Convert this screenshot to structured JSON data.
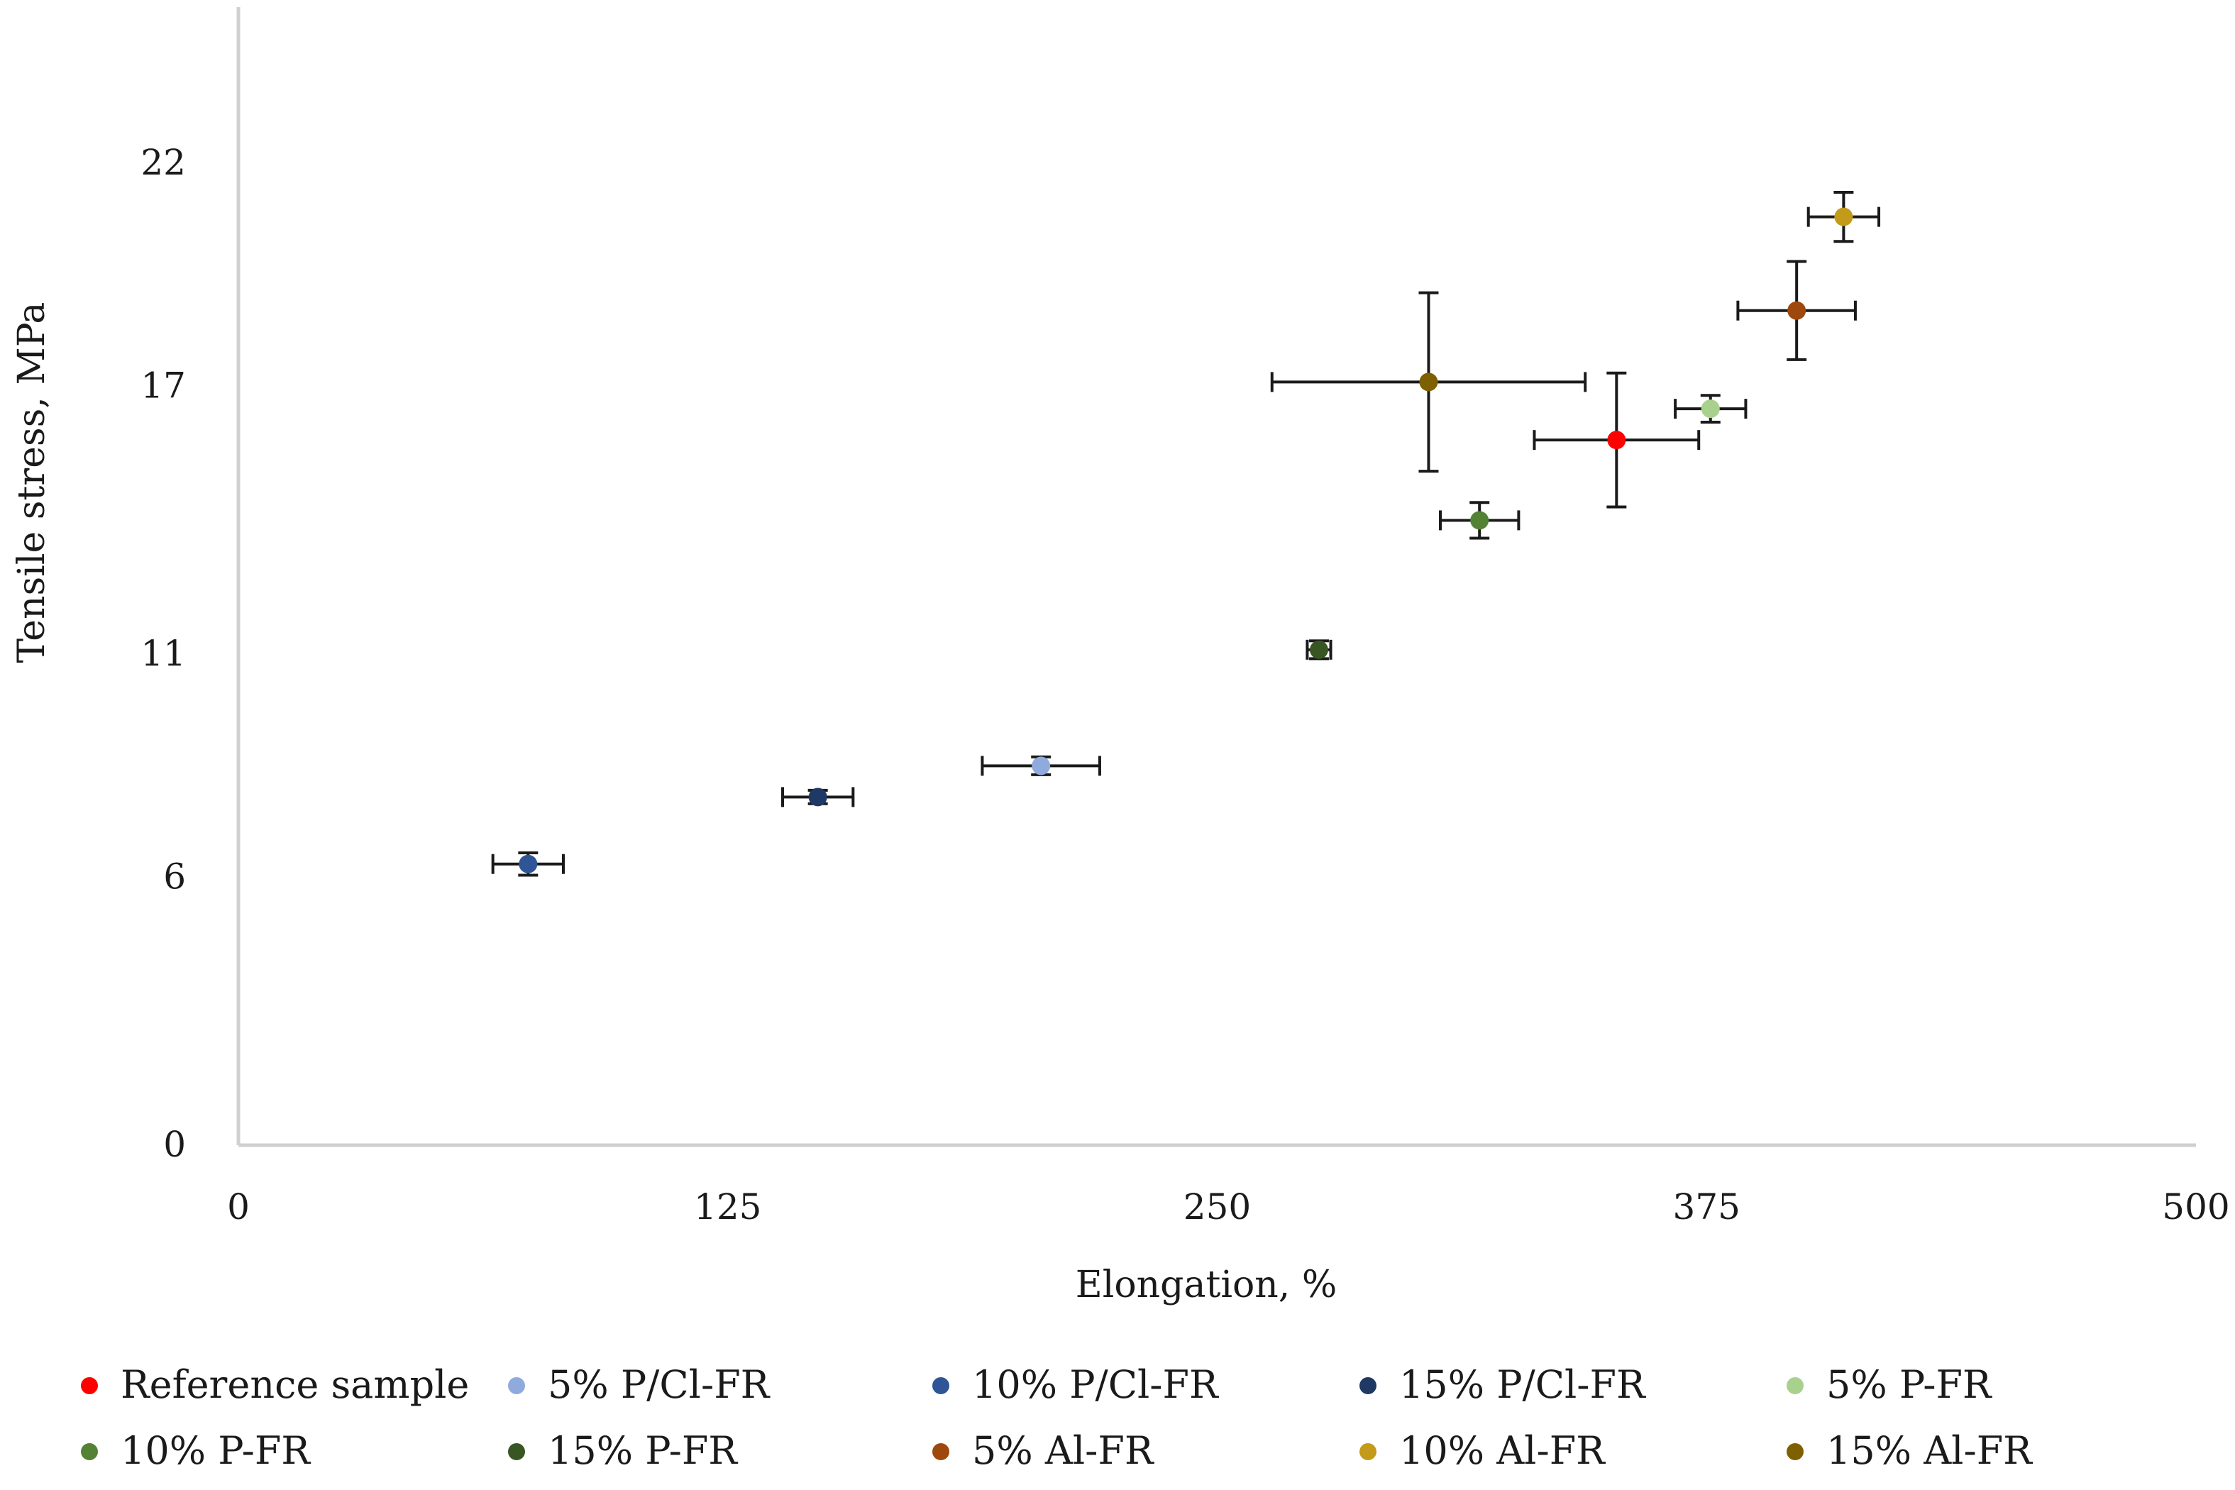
{
  "chart_data": {
    "type": "scatter",
    "title": "",
    "xlabel": "Elongation, %",
    "ylabel": "Tensile stress, MPa",
    "xlim": [
      0,
      500
    ],
    "ylim": [
      0,
      25.5
    ],
    "x_ticks": [
      {
        "value": 0,
        "label": "0"
      },
      {
        "value": 125,
        "label": "125"
      },
      {
        "value": 250,
        "label": "250"
      },
      {
        "value": 375,
        "label": "375"
      },
      {
        "value": 500,
        "label": "500"
      }
    ],
    "y_ticks": [
      {
        "value": 0,
        "label": "0"
      },
      {
        "value": 6,
        "label": "6"
      },
      {
        "value": 11,
        "label": "11"
      },
      {
        "value": 17,
        "label": "17"
      },
      {
        "value": 22,
        "label": "22"
      }
    ],
    "grid": false,
    "legend_position": "bottom",
    "series": [
      {
        "name": "Reference sample",
        "color": "#ff0000",
        "x": 352,
        "y": 15.8,
        "x_err": 21,
        "y_err": 1.5
      },
      {
        "name": "5% P/Cl-FR",
        "color": "#8faadc",
        "x": 205,
        "y": 8.5,
        "x_err": 15,
        "y_err": 0.2
      },
      {
        "name": "10% P/Cl-FR",
        "color": "#2f5597",
        "x": 74,
        "y": 6.3,
        "x_err": 9,
        "y_err": 0.25
      },
      {
        "name": "15% P/Cl-FR",
        "color": "#1f3864",
        "x": 148,
        "y": 7.8,
        "x_err": 9,
        "y_err": 0.15
      },
      {
        "name": "5% P-FR",
        "color": "#a9d18e",
        "x": 376,
        "y": 16.5,
        "x_err": 9,
        "y_err": 0.3
      },
      {
        "name": "10% P-FR",
        "color": "#548235",
        "x": 317,
        "y": 14.0,
        "x_err": 10,
        "y_err": 0.4
      },
      {
        "name": "15% P-FR",
        "color": "#375623",
        "x": 276,
        "y": 11.1,
        "x_err": 3,
        "y_err": 0.2
      },
      {
        "name": "5% Al-FR",
        "color": "#9e480e",
        "x": 398,
        "y": 18.7,
        "x_err": 15,
        "y_err": 1.1
      },
      {
        "name": "10% Al-FR",
        "color": "#c49a1a",
        "x": 410,
        "y": 20.8,
        "x_err": 9,
        "y_err": 0.55
      },
      {
        "name": "15% Al-FR",
        "color": "#7f6000",
        "x": 304,
        "y": 17.1,
        "x_err": 40,
        "y_err": 2.0
      }
    ]
  }
}
